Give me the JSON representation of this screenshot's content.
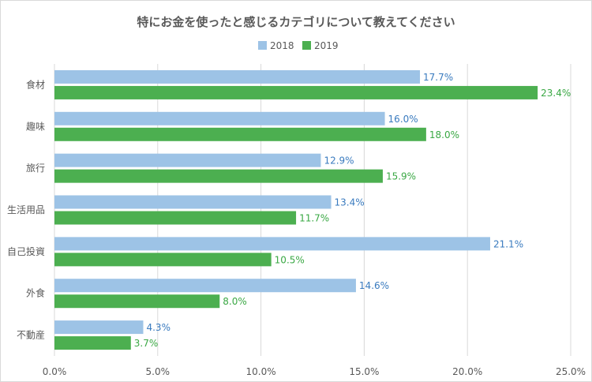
{
  "chart_data": {
    "type": "bar",
    "orientation": "horizontal",
    "title": "特にお金を使ったと感じるカテゴリについて教えてください",
    "categories": [
      "食材",
      "趣味",
      "旅行",
      "生活用品",
      "自己投資",
      "外食",
      "不動産"
    ],
    "series": [
      {
        "name": "2018",
        "color": "#9dc3e6",
        "label_color": "#3a7bbf",
        "values": [
          17.7,
          16.0,
          12.9,
          13.4,
          21.1,
          14.6,
          4.3
        ],
        "labels": [
          "17.7%",
          "16.0%",
          "12.9%",
          "13.4%",
          "21.1%",
          "14.6%",
          "4.3%"
        ]
      },
      {
        "name": "2019",
        "color": "#4caf50",
        "label_color": "#3aa844",
        "values": [
          23.4,
          18.0,
          15.9,
          11.7,
          10.5,
          8.0,
          3.7
        ],
        "labels": [
          "23.4%",
          "18.0%",
          "15.9%",
          "11.7%",
          "10.5%",
          "8.0%",
          "3.7%"
        ]
      }
    ],
    "xlim": [
      0,
      25
    ],
    "xticks": [
      0,
      5,
      10,
      15,
      20,
      25
    ],
    "xtick_labels": [
      "0.0%",
      "5.0%",
      "10.0%",
      "15.0%",
      "20.0%",
      "25.0%"
    ],
    "grid": true,
    "legend_position": "top"
  }
}
